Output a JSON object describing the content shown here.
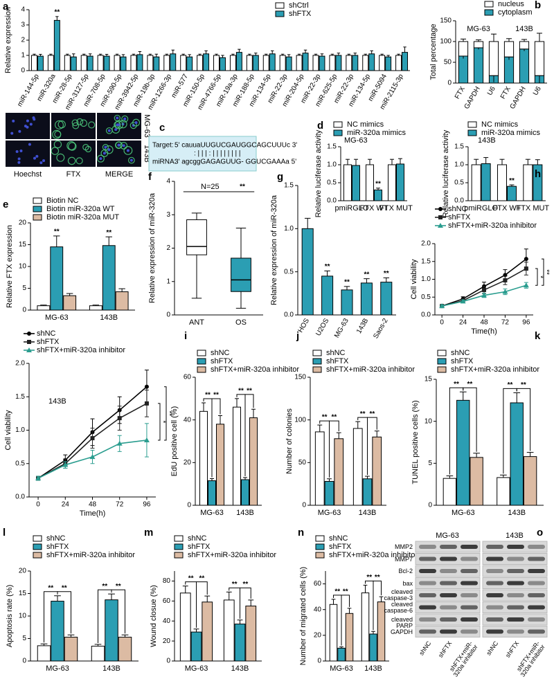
{
  "chart_data": [
    {
      "label": "a",
      "type": "bar",
      "ylabel": "Relative expression",
      "categories": [
        "miR-144-5p",
        "miR-320a",
        "miR-28-5p",
        "miR-3127-5p",
        "miR-708-5p",
        "miR-590-5p",
        "miR-3942-5p",
        "miR-19b-3p",
        "miR-1266-3p",
        "miR-577",
        "miR-150-5p",
        "miR-4766-5p",
        "miR-19a-3p",
        "miR-188-5p",
        "miR-134-5p",
        "miR-22-3p",
        "miR-204-5p",
        "miR-22-3p",
        "miR-625-5p",
        "miR-22-3p",
        "miR-134-5p",
        "miR-5094",
        "miR-2115-3p"
      ],
      "ylim": [
        0,
        4
      ],
      "yticks": [
        0,
        1,
        2,
        3,
        4
      ],
      "series": [
        {
          "name": "shCtrl",
          "color": "#ffffff",
          "values": [
            1,
            1,
            1,
            1,
            1,
            1,
            1,
            1,
            1,
            1,
            1,
            1,
            1,
            1,
            1,
            1,
            1,
            1,
            1,
            1,
            1,
            1,
            1
          ],
          "errors": [
            0.08,
            0.08,
            0.08,
            0.08,
            0.08,
            0.08,
            0.08,
            0.08,
            0.08,
            0.08,
            0.08,
            0.08,
            0.08,
            0.08,
            0.08,
            0.08,
            0.08,
            0.08,
            0.08,
            0.08,
            0.08,
            0.08,
            0.08
          ]
        },
        {
          "name": "shFTX",
          "color": "#2b9eb3",
          "values": [
            0.95,
            3.3,
            0.9,
            0.95,
            0.95,
            0.9,
            1.05,
            0.9,
            1.1,
            0.9,
            1.1,
            0.85,
            1.2,
            1,
            1.1,
            0.9,
            1.15,
            0.95,
            1,
            1,
            1.1,
            0.9,
            1.2
          ],
          "errors": [
            0.12,
            0.25,
            0.2,
            0.15,
            0.12,
            0.15,
            0.2,
            0.18,
            0.25,
            0.15,
            0.2,
            0.15,
            0.2,
            0.15,
            0.2,
            0.15,
            0.2,
            0.15,
            0.15,
            0.15,
            0.2,
            0.1,
            0.35
          ],
          "significance": [
            null,
            "**",
            null,
            null,
            null,
            null,
            null,
            null,
            null,
            null,
            null,
            null,
            null,
            null,
            null,
            null,
            null,
            null,
            null,
            null,
            null,
            null,
            null
          ]
        }
      ]
    },
    {
      "label": "b",
      "type": "stacked_bar",
      "ylabel": "Total percentage",
      "categories": [
        "FTX",
        "GAPDH",
        "U6",
        "FTX",
        "GAPDH",
        "U6"
      ],
      "groups": [
        "MG-63",
        "143B"
      ],
      "ylim": [
        0,
        150
      ],
      "yticks": [
        0,
        50,
        100,
        150
      ],
      "series": [
        {
          "name": "nucleus",
          "color": "#ffffff",
          "values": [
            35,
            15,
            82,
            37,
            18,
            82
          ],
          "errors": [
            6,
            4,
            18,
            7,
            5,
            20
          ]
        },
        {
          "name": "cytoplasm",
          "color": "#2b9eb3",
          "values": [
            65,
            85,
            18,
            63,
            82,
            18
          ],
          "errors": [
            6,
            4,
            16,
            7,
            5,
            18
          ]
        }
      ]
    },
    {
      "label": "d",
      "type": "bar",
      "annotation": "MG-63",
      "ylabel": "Relative luciferase activity",
      "categories": [
        "pmiRGLO",
        "FTX WT",
        "FTX MUT"
      ],
      "ylim": [
        0,
        1.5
      ],
      "yticks": [
        {
          "value": 0,
          "label": "0.0"
        },
        0.5,
        {
          "value": 1,
          "label": "1.0"
        },
        1.5
      ],
      "series": [
        {
          "name": "NC mimics",
          "color": "#ffffff",
          "values": [
            1,
            1,
            1
          ],
          "errors": [
            0.15,
            0.15,
            0.15
          ]
        },
        {
          "name": "miR-320a mimics",
          "color": "#2b9eb3",
          "values": [
            0.98,
            0.3,
            1.02
          ],
          "errors": [
            0.17,
            0.05,
            0.15
          ],
          "significance": [
            null,
            "**",
            null
          ]
        }
      ]
    },
    {
      "type": "bar",
      "annotation": "143B",
      "ylabel": "Relative luciferase activity",
      "categories": [
        "pmiRGLO",
        "FTX WT",
        "FTX MUT"
      ],
      "ylim": [
        0,
        1.5
      ],
      "yticks": [
        {
          "value": 0,
          "label": "0.0"
        },
        0.5,
        {
          "value": 1,
          "label": "1.0"
        },
        1.5
      ],
      "series": [
        {
          "name": "NC mimics",
          "color": "#ffffff",
          "values": [
            1,
            1,
            1
          ],
          "errors": [
            0.15,
            0.15,
            0.15
          ]
        },
        {
          "name": "miR-320a mimics",
          "color": "#2b9eb3",
          "values": [
            1.03,
            0.4,
            1
          ],
          "errors": [
            0.17,
            0.04,
            0.14
          ],
          "significance": [
            null,
            "**",
            null
          ]
        }
      ]
    },
    {
      "label": "e",
      "type": "bar",
      "ylabel": "Relative FTX expression",
      "categories": [
        "MG-63",
        "143B"
      ],
      "ylim": [
        0,
        20
      ],
      "yticks": [
        0,
        5,
        10,
        15,
        20
      ],
      "series": [
        {
          "name": "Biotin NC",
          "color": "#ffffff",
          "values": [
            1,
            1
          ],
          "errors": [
            0.15,
            0.15
          ]
        },
        {
          "name": "Biotin miR-320a WT",
          "color": "#2b9eb3",
          "values": [
            14.5,
            14.8
          ],
          "errors": [
            2.5,
            2
          ],
          "significance": [
            "**",
            "**"
          ]
        },
        {
          "name": "Biotin miR-320a MUT",
          "color": "#dcbba3",
          "values": [
            3.3,
            4.2
          ],
          "errors": [
            0.5,
            0.7
          ]
        }
      ]
    },
    {
      "label": "f",
      "type": "box",
      "ylabel": "Relative expression of miR-320a",
      "categories": [
        "ANT",
        "OS"
      ],
      "ylim": [
        0,
        4
      ],
      "yticks": [
        0,
        1,
        2,
        3,
        4
      ],
      "annotation": "N=25",
      "significance": "**",
      "colors": [
        "#ffffff",
        "#2b9eb3"
      ],
      "boxes": [
        {
          "min": 0.5,
          "q1": 1.8,
          "median": 2.05,
          "q3": 2.85,
          "max": 3.05
        },
        {
          "min": 0.2,
          "q1": 0.7,
          "median": 1.05,
          "q3": 1.7,
          "max": 2.6
        }
      ]
    },
    {
      "label": "g",
      "type": "bar",
      "ylabel": "Relative expression of miR-320a",
      "categories": [
        "HOS",
        "U2OS",
        "MG-63",
        "143B",
        "Saos-2"
      ],
      "ylim": [
        0,
        1.5
      ],
      "yticks": [
        {
          "value": 0,
          "label": "0.0"
        },
        0.5,
        {
          "value": 1,
          "label": "1.0"
        },
        1.5
      ],
      "series": [
        {
          "color": "#2b9eb3",
          "values": [
            1,
            0.45,
            0.29,
            0.37,
            0.38
          ],
          "errors": [
            0.12,
            0.06,
            0.04,
            0.05,
            0.05
          ],
          "significance": [
            null,
            "**",
            "**",
            "**",
            "**"
          ]
        }
      ]
    },
    {
      "label": "h",
      "type": "line",
      "ylabel": "Cell viability",
      "xlabel": "Time(h)",
      "x": [
        0,
        24,
        48,
        72,
        96
      ],
      "xlim": [
        -8,
        104
      ],
      "xticks": [
        0,
        24,
        48,
        72,
        96
      ],
      "ylim": [
        0,
        2
      ],
      "yticks": [
        {
          "value": 0,
          "label": "0.0"
        },
        0.5,
        {
          "value": 1,
          "label": "1.0"
        },
        1.5,
        {
          "value": 2,
          "label": "2.0"
        }
      ],
      "series": [
        {
          "name": "shNC",
          "color": "#000000",
          "marker": "circle",
          "values": [
            0.25,
            0.45,
            0.8,
            1.12,
            1.57
          ],
          "errors": [
            0.03,
            0.06,
            0.12,
            0.15,
            0.28
          ]
        },
        {
          "name": "shFTX",
          "color": "#222222",
          "marker": "square",
          "values": [
            0.25,
            0.4,
            0.7,
            0.97,
            1.3
          ],
          "errors": [
            0.03,
            0.05,
            0.1,
            0.12,
            0.18
          ]
        },
        {
          "name": "shFTX+miR-320a inhibitor",
          "color": "#2a9d8f",
          "marker": "triangle",
          "values": [
            0.25,
            0.38,
            0.55,
            0.65,
            0.83
          ],
          "errors": [
            0.03,
            0.04,
            0.06,
            0.08,
            0.08
          ]
        }
      ],
      "end_significance": [
        "*",
        "**"
      ]
    },
    {
      "type": "line",
      "annotation": "143B",
      "ylabel": "Cell viability",
      "xlabel": "Time(h)",
      "x": [
        0,
        24,
        48,
        72,
        96
      ],
      "xlim": [
        -8,
        104
      ],
      "xticks": [
        0,
        24,
        48,
        72,
        96
      ],
      "ylim": [
        0,
        2
      ],
      "yticks": [
        {
          "value": 0,
          "label": "0.0"
        },
        0.5,
        {
          "value": 1,
          "label": "1.0"
        },
        1.5,
        {
          "value": 2,
          "label": "2.0"
        }
      ],
      "series": [
        {
          "name": "shNC",
          "color": "#000000",
          "marker": "circle",
          "values": [
            0.28,
            0.55,
            0.97,
            1.3,
            1.65
          ],
          "errors": [
            0.03,
            0.08,
            0.2,
            0.2,
            0.25
          ]
        },
        {
          "name": "shFTX",
          "color": "#222222",
          "marker": "square",
          "values": [
            0.28,
            0.5,
            0.88,
            1.18,
            1.4
          ],
          "errors": [
            0.03,
            0.07,
            0.15,
            0.18,
            0.2
          ]
        },
        {
          "name": "shFTX+miR-320a inhibitor",
          "color": "#2a9d8f",
          "marker": "triangle",
          "values": [
            0.28,
            0.48,
            0.6,
            0.8,
            0.85
          ],
          "errors": [
            0.03,
            0.05,
            0.1,
            0.12,
            0.25
          ]
        }
      ],
      "end_significance": [
        "*",
        "**"
      ]
    },
    {
      "label": "i",
      "type": "bar",
      "ylabel": "EdU positive cell (%)",
      "categories": [
        "MG-63",
        "143B"
      ],
      "ylim": [
        0,
        60
      ],
      "yticks": [
        0,
        20,
        40,
        60
      ],
      "brackets": [
        [
          "**",
          "**"
        ],
        [
          "**",
          "**"
        ]
      ],
      "series": [
        {
          "name": "shNC",
          "color": "#ffffff",
          "values": [
            44,
            46
          ],
          "errors": [
            4,
            4
          ]
        },
        {
          "name": "shFTX",
          "color": "#2b9eb3",
          "values": [
            11.5,
            12
          ],
          "errors": [
            1,
            1
          ]
        },
        {
          "name": "shFTX+miR-320a inhibitor",
          "color": "#dcbba3",
          "values": [
            38,
            41
          ],
          "errors": [
            4,
            4
          ]
        }
      ]
    },
    {
      "label": "j",
      "type": "bar",
      "ylabel": "Number of colonies",
      "categories": [
        "MG-63",
        "143B"
      ],
      "ylim": [
        0,
        150
      ],
      "yticks": [
        0,
        50,
        100,
        150
      ],
      "brackets": [
        [
          "**",
          "**"
        ],
        [
          "**",
          "**"
        ]
      ],
      "series": [
        {
          "name": "shNC",
          "color": "#ffffff",
          "values": [
            86,
            90
          ],
          "errors": [
            8,
            8
          ]
        },
        {
          "name": "shFTX",
          "color": "#2b9eb3",
          "values": [
            28,
            31
          ],
          "errors": [
            3,
            3
          ]
        },
        {
          "name": "shFTX+miR-320a inhibitor",
          "color": "#dcbba3",
          "values": [
            78,
            80
          ],
          "errors": [
            7,
            7
          ]
        }
      ]
    },
    {
      "label": "k",
      "type": "bar",
      "ylabel": "TUNEL positive cells (%)",
      "categories": [
        "MG-63",
        "143B"
      ],
      "ylim": [
        0,
        15
      ],
      "yticks": [
        0,
        5,
        10,
        15
      ],
      "brackets": [
        [
          "**",
          "**"
        ],
        [
          "**",
          "**"
        ]
      ],
      "series": [
        {
          "name": "shNC",
          "color": "#ffffff",
          "values": [
            3.2,
            3.3
          ],
          "errors": [
            0.3,
            0.3
          ]
        },
        {
          "name": "shFTX",
          "color": "#2b9eb3",
          "values": [
            12.5,
            12.2
          ],
          "errors": [
            1,
            1.2
          ]
        },
        {
          "name": "shFTX+miR-320a inhibitor",
          "color": "#dcbba3",
          "values": [
            5.7,
            5.8
          ],
          "errors": [
            0.5,
            0.5
          ]
        }
      ]
    },
    {
      "label": "l",
      "type": "bar",
      "ylabel": "Apoptosis rate (%)",
      "categories": [
        "MG-63",
        "143B"
      ],
      "ylim": [
        0,
        20
      ],
      "yticks": [
        0,
        5,
        10,
        15,
        20
      ],
      "brackets": [
        [
          "**",
          "**"
        ],
        [
          "**",
          "**"
        ]
      ],
      "series": [
        {
          "name": "shNC",
          "color": "#ffffff",
          "values": [
            3.4,
            3.3
          ],
          "errors": [
            0.4,
            0.4
          ]
        },
        {
          "name": "shFTX",
          "color": "#2b9eb3",
          "values": [
            13.3,
            13.6
          ],
          "errors": [
            1.2,
            1.3
          ]
        },
        {
          "name": "shFTX+miR-320a inhibitor",
          "color": "#dcbba3",
          "values": [
            5.3,
            5.3
          ],
          "errors": [
            0.5,
            0.5
          ]
        }
      ]
    },
    {
      "label": "m",
      "type": "bar",
      "ylabel": "Wound closue (%)",
      "categories": [
        "MG-63",
        "143B"
      ],
      "ylim": [
        0,
        90
      ],
      "yticks": [
        0,
        20,
        40,
        60,
        80
      ],
      "brackets": [
        [
          "**",
          "**"
        ],
        [
          "**",
          "**"
        ]
      ],
      "series": [
        {
          "name": "shNC",
          "color": "#ffffff",
          "values": [
            68,
            61
          ],
          "errors": [
            7,
            8
          ]
        },
        {
          "name": "shFTX",
          "color": "#2b9eb3",
          "values": [
            29,
            37
          ],
          "errors": [
            3,
            4
          ]
        },
        {
          "name": "shFTX+miR-320a inhibitor",
          "color": "#dcbba3",
          "values": [
            59,
            55
          ],
          "errors": [
            6,
            6
          ]
        }
      ]
    },
    {
      "label": "n",
      "type": "bar",
      "ylabel": "Number of migrated cells (%)",
      "categories": [
        "MG-63",
        "143B"
      ],
      "ylim": [
        0,
        70
      ],
      "yticks": [
        0,
        20,
        40,
        60
      ],
      "brackets": [
        [
          "**",
          "**"
        ],
        [
          "**",
          "**"
        ]
      ],
      "series": [
        {
          "name": "shNC",
          "color": "#ffffff",
          "values": [
            44,
            53
          ],
          "errors": [
            4,
            6
          ]
        },
        {
          "name": "shFTX",
          "color": "#2b9eb3",
          "values": [
            10,
            21
          ],
          "errors": [
            1,
            2
          ]
        },
        {
          "name": "shFTX+miR-320a inhibitor",
          "color": "#dcbba3",
          "values": [
            37,
            46
          ],
          "errors": [
            4,
            4
          ]
        }
      ]
    }
  ],
  "figure_images": {
    "row_labels": [
      "MG-63",
      "143B"
    ],
    "col_labels": [
      "Hoechst",
      "FTX",
      "MERGE"
    ]
  },
  "binding": {
    "label": "c",
    "target_label": "Target:",
    "target": "5'  cauuaUUGUCGAUGGCAGCUUUc 3'",
    "pairing": ":  |  | |  :  |      | | | | | | |",
    "mirna_label": "miRNA:",
    "mirna": "3'  agcggGAGAGUUG- GGUCGAAAa 5'"
  },
  "western_blot": {
    "label": "o",
    "groups": [
      "MG-63",
      "143B"
    ],
    "proteins": [
      "MMP2",
      "MMP7",
      "Bcl-2",
      "bax",
      "cleaved caspase-3",
      "cleaved caspase-6",
      "cleaved PARP",
      "GAPDH"
    ],
    "lanes": [
      "shNC",
      "shFTX",
      "shFTX+miR-320a inhibitor"
    ]
  }
}
